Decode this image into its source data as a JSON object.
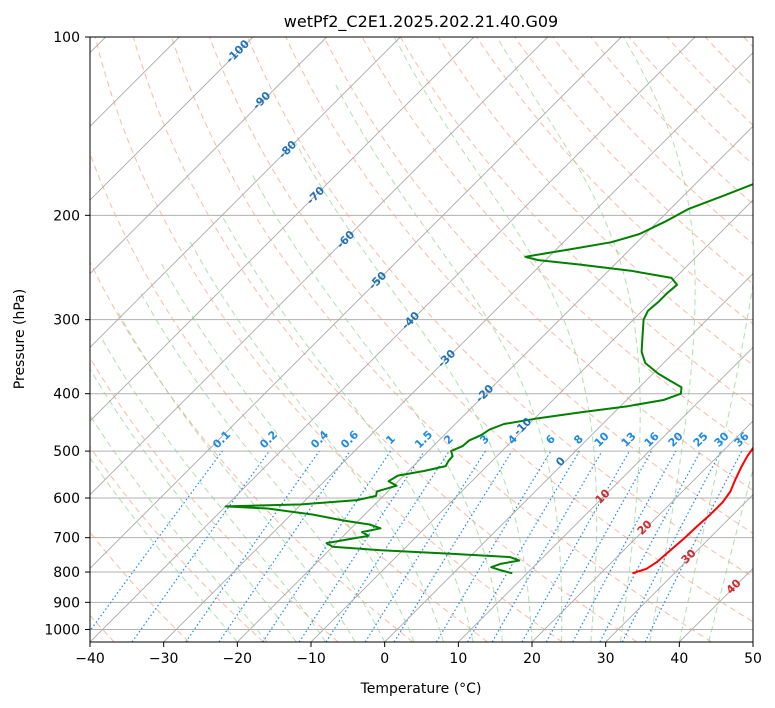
{
  "chart_data": {
    "type": "line",
    "subtype": "skew-t log-p",
    "title": "wetPf2_C2E1.2025.202.21.40.G09",
    "xlabel": "Temperature (°C)",
    "ylabel": "Pressure (hPa)",
    "xlim": [
      -40,
      50
    ],
    "ylim": [
      1050,
      100
    ],
    "y_scale": "log",
    "grid": true,
    "x_ticks": [
      "−40",
      "−30",
      "−20",
      "−10",
      "0",
      "10",
      "20",
      "30",
      "40",
      "50"
    ],
    "y_ticks": [
      "100",
      "200",
      "300",
      "400",
      "500",
      "600",
      "700",
      "800",
      "900",
      "1000"
    ],
    "dry_adiabat_labels": [
      "-100",
      "-90",
      "-80",
      "-70",
      "-60",
      "-50",
      "-40",
      "-30",
      "-20",
      "-10",
      "0"
    ],
    "moist_adiabat_labels": [
      "10",
      "20",
      "30",
      "40"
    ],
    "mixing_ratio_labels": [
      "0.1",
      "0.2",
      "0.4",
      "0.6",
      "1",
      "1.5",
      "2",
      "3",
      "4",
      "6",
      "8",
      "10",
      "13",
      "16",
      "20",
      "25",
      "30",
      "36"
    ],
    "colors": {
      "temperature": "#ff0000",
      "dewpoint": "#008000",
      "dry_adiabat": "#f4a58a",
      "moist_adiabat": "#90d090",
      "mixing_ratio": "#1e8ae0",
      "isotherm": "#808080",
      "dry_adiabat_label": "#2171b5",
      "moist_adiabat_label": "#d62728"
    },
    "series": [
      {
        "color": "#ff0000",
        "points": [
          [
            804,
            24.3
          ],
          [
            790,
            25.6
          ],
          [
            770,
            26.1
          ],
          [
            740,
            26.3
          ],
          [
            700,
            26.6
          ],
          [
            670,
            26.7
          ],
          [
            640,
            26.9
          ],
          [
            610,
            26.9
          ],
          [
            585,
            26.5
          ],
          [
            560,
            25.6
          ],
          [
            530,
            24.6
          ],
          [
            510,
            24.0
          ],
          [
            490,
            23.6
          ],
          [
            470,
            22.9
          ],
          [
            450,
            22.5
          ],
          [
            430,
            21.5
          ],
          [
            415,
            20.6
          ],
          [
            400,
            19.6
          ],
          [
            385,
            18.2
          ],
          [
            365,
            17.9
          ],
          [
            345,
            16.9
          ],
          [
            320,
            14.7
          ],
          [
            300,
            12.5
          ],
          [
            280,
            10.5
          ],
          [
            265,
            8.8
          ],
          [
            255,
            8.6
          ],
          [
            245,
            9.2
          ],
          [
            235,
            9.6
          ],
          [
            225,
            8.6
          ],
          [
            210,
            6.8
          ],
          [
            195,
            4.4
          ],
          [
            180,
            1.6
          ],
          [
            165,
            -1.0
          ],
          [
            155,
            -1.9
          ],
          [
            145,
            -2.0
          ],
          [
            135,
            -2.5
          ],
          [
            125,
            -3.2
          ],
          [
            115,
            -3.8
          ],
          [
            105,
            -3.3
          ],
          [
            100,
            -3.2
          ]
        ]
      },
      {
        "color": "#008000",
        "points": [
          [
            804,
            8.0
          ],
          [
            795,
            6.1
          ],
          [
            785,
            4.3
          ],
          [
            775,
            5.1
          ],
          [
            765,
            7.2
          ],
          [
            755,
            5.5
          ],
          [
            745,
            -3.0
          ],
          [
            735,
            -13.0
          ],
          [
            725,
            -20.0
          ],
          [
            715,
            -21.3
          ],
          [
            705,
            -19.0
          ],
          [
            695,
            -16.6
          ],
          [
            685,
            -18.0
          ],
          [
            675,
            -16.0
          ],
          [
            665,
            -18.0
          ],
          [
            655,
            -22.0
          ],
          [
            640,
            -27.0
          ],
          [
            625,
            -34.0
          ],
          [
            620,
            -40.0
          ],
          [
            615,
            -30.0
          ],
          [
            605,
            -23.0
          ],
          [
            595,
            -21.0
          ],
          [
            585,
            -21.5
          ],
          [
            572,
            -19.6
          ],
          [
            562,
            -21.3
          ],
          [
            550,
            -20.8
          ],
          [
            540,
            -17.8
          ],
          [
            530,
            -15.6
          ],
          [
            520,
            -15.9
          ],
          [
            510,
            -16.0
          ],
          [
            500,
            -16.9
          ],
          [
            490,
            -16.0
          ],
          [
            480,
            -15.9
          ],
          [
            470,
            -15.0
          ],
          [
            460,
            -14.6
          ],
          [
            450,
            -13.4
          ],
          [
            440,
            -9.5
          ],
          [
            430,
            -4.5
          ],
          [
            420,
            1.0
          ],
          [
            410,
            5.0
          ],
          [
            400,
            6.5
          ],
          [
            390,
            5.7
          ],
          [
            380,
            3.2
          ],
          [
            370,
            0.7
          ],
          [
            355,
            -2.5
          ],
          [
            340,
            -4.5
          ],
          [
            320,
            -6.5
          ],
          [
            300,
            -8.6
          ],
          [
            290,
            -9.2
          ],
          [
            280,
            -9.0
          ],
          [
            270,
            -9.0
          ],
          [
            262,
            -8.8
          ],
          [
            255,
            -10.5
          ],
          [
            248,
            -17.0
          ],
          [
            242,
            -25.0
          ],
          [
            238,
            -31.0
          ],
          [
            235,
            -33.2
          ],
          [
            232,
            -31.0
          ],
          [
            228,
            -28.0
          ],
          [
            222,
            -23.5
          ],
          [
            215,
            -20.8
          ],
          [
            205,
            -19.0
          ],
          [
            195,
            -17.5
          ],
          [
            185,
            -14.5
          ],
          [
            175,
            -11.5
          ],
          [
            165,
            -9.0
          ],
          [
            155,
            -7.2
          ],
          [
            145,
            -6.3
          ],
          [
            135,
            -5.9
          ],
          [
            125,
            -5.9
          ],
          [
            115,
            -5.6
          ],
          [
            108,
            -5.5
          ],
          [
            103,
            -3.8
          ],
          [
            100,
            -1.6
          ]
        ]
      }
    ]
  }
}
